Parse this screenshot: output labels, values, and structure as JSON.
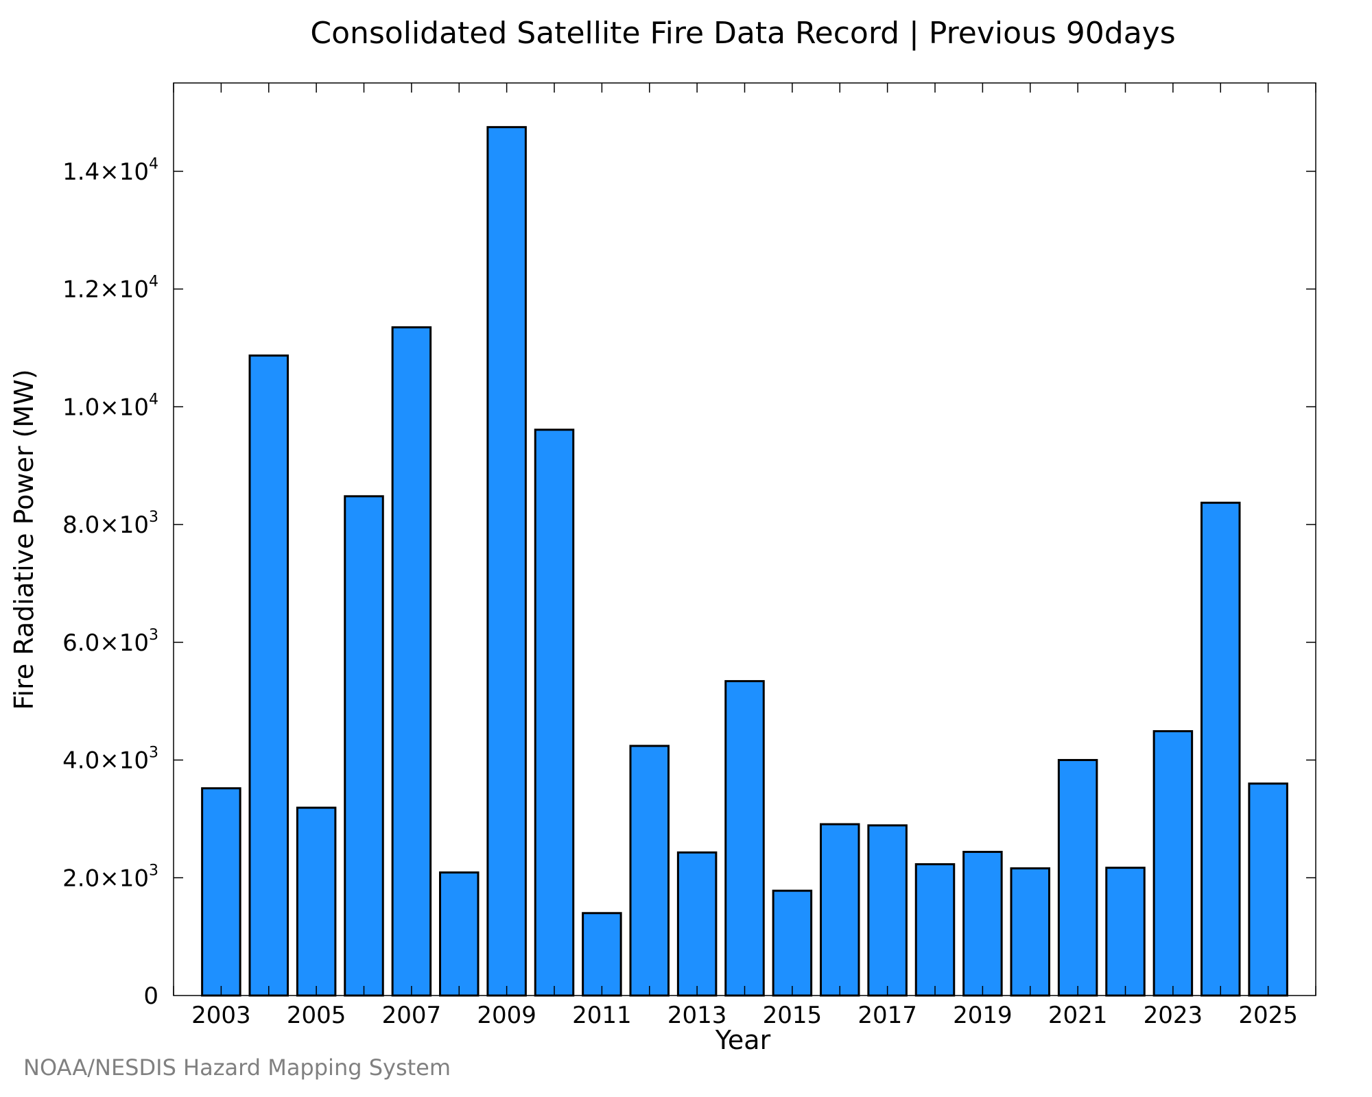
{
  "credit": "NOAA/NESDIS Hazard Mapping System",
  "colors": {
    "bar_fill": "#1e90ff",
    "bar_stroke": "#000000",
    "credit": "#808080"
  },
  "chart_data": {
    "type": "bar",
    "title": "Consolidated Satellite Fire Data Record | Previous 90days",
    "xlabel": "Year",
    "ylabel": "Fire Radiative Power (MW)",
    "categories": [
      2003,
      2004,
      2005,
      2006,
      2007,
      2008,
      2009,
      2010,
      2011,
      2012,
      2013,
      2014,
      2015,
      2016,
      2017,
      2018,
      2019,
      2020,
      2021,
      2022,
      2023,
      2024,
      2025
    ],
    "values": [
      3520,
      10870,
      3190,
      8480,
      11350,
      2090,
      14750,
      9610,
      1400,
      4240,
      2430,
      5340,
      1780,
      2910,
      2890,
      2230,
      2440,
      2160,
      4000,
      2170,
      4490,
      8370,
      3600
    ],
    "ylim": [
      0,
      15500
    ],
    "xlim": [
      2002,
      2026
    ],
    "x_tick_labels": [
      "2003",
      "2005",
      "2007",
      "2009",
      "2011",
      "2013",
      "2015",
      "2017",
      "2019",
      "2021",
      "2023",
      "2025"
    ],
    "y_ticks": [
      {
        "value": 0,
        "mantissa": "0",
        "exponent": ""
      },
      {
        "value": 2000,
        "mantissa": "2.0×10",
        "exponent": "3"
      },
      {
        "value": 4000,
        "mantissa": "4.0×10",
        "exponent": "3"
      },
      {
        "value": 6000,
        "mantissa": "6.0×10",
        "exponent": "3"
      },
      {
        "value": 8000,
        "mantissa": "8.0×10",
        "exponent": "3"
      },
      {
        "value": 10000,
        "mantissa": "1.0×10",
        "exponent": "4"
      },
      {
        "value": 12000,
        "mantissa": "1.2×10",
        "exponent": "4"
      },
      {
        "value": 14000,
        "mantissa": "1.4×10",
        "exponent": "4"
      }
    ],
    "grid": false,
    "legend": "none"
  }
}
